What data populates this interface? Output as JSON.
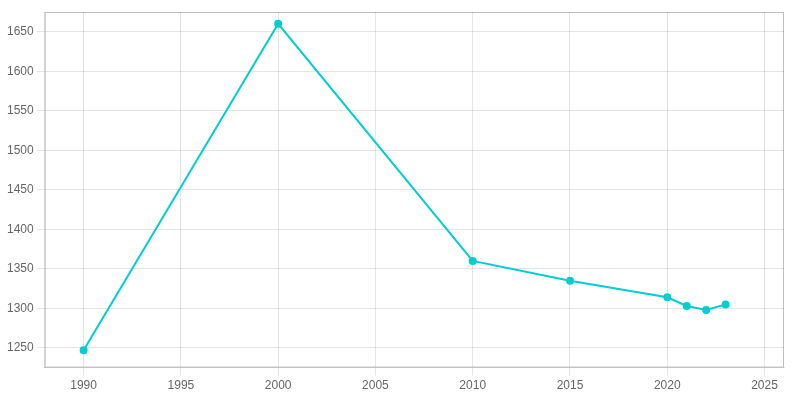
{
  "chart_data": {
    "type": "line",
    "x": [
      1990,
      2000,
      2010,
      2015,
      2020,
      2021,
      2022,
      2023
    ],
    "values": [
      1247,
      1660,
      1360,
      1335,
      1314,
      1303,
      1298,
      1305
    ],
    "color": "#00CED1",
    "marker": "circle",
    "xlim": [
      1988,
      2026
    ],
    "ylim": [
      1225,
      1675
    ],
    "xticks": [
      1990,
      1995,
      2000,
      2005,
      2010,
      2015,
      2020,
      2025
    ],
    "yticks": [
      1250,
      1300,
      1350,
      1400,
      1450,
      1500,
      1550,
      1600,
      1650
    ],
    "grid": true
  }
}
